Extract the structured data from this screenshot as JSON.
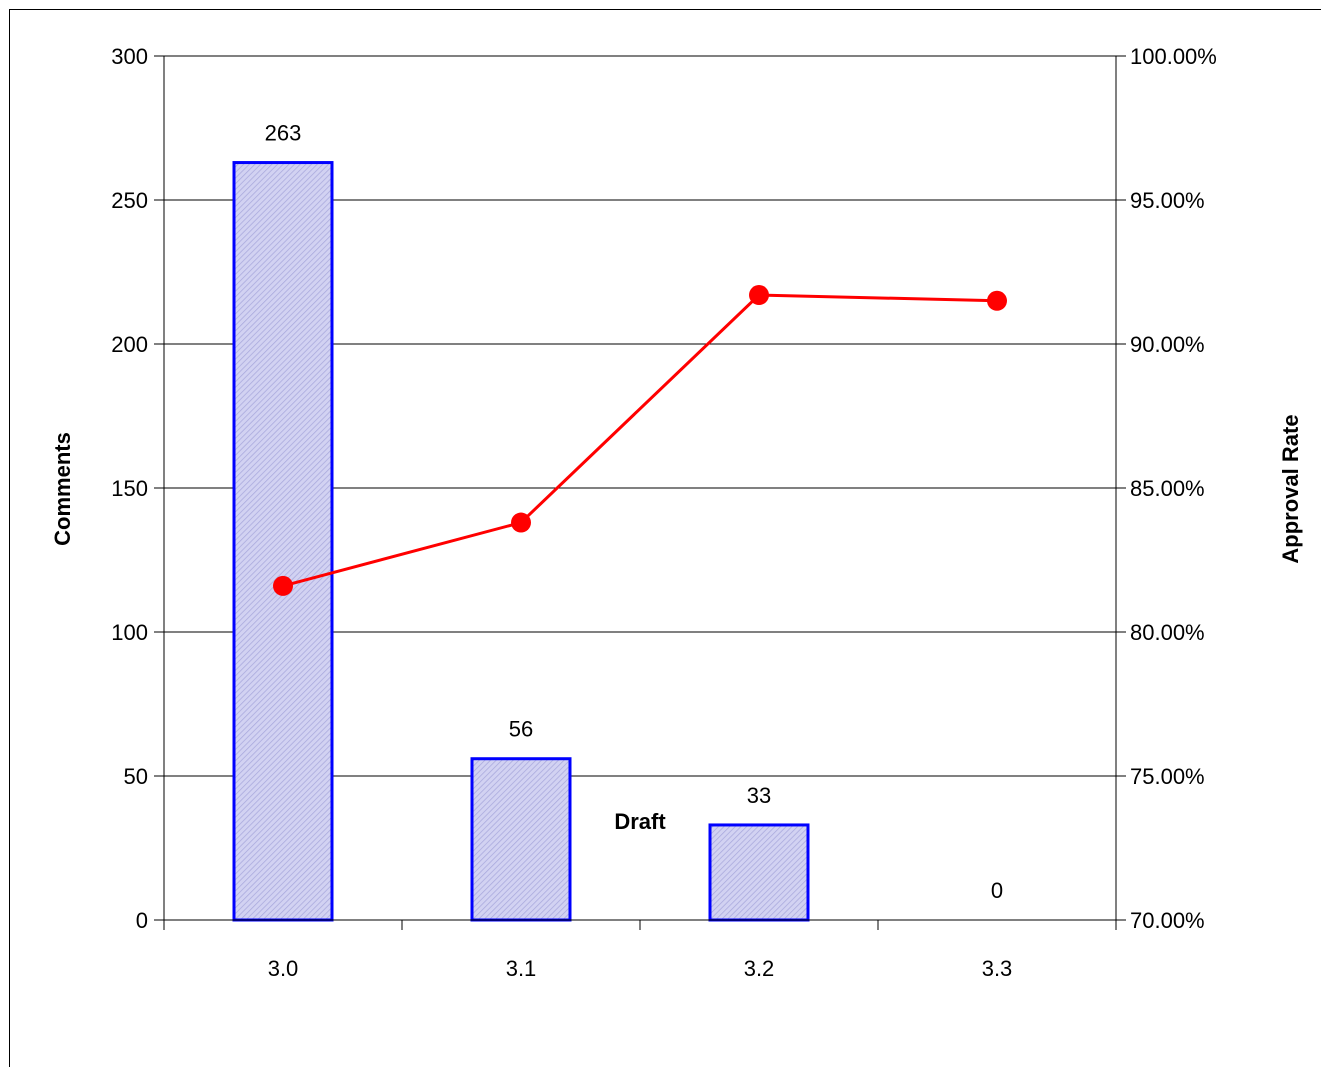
{
  "chart_data": {
    "type": "bar",
    "categories": [
      "3.0",
      "3.1",
      "3.2",
      "3.3"
    ],
    "xlabel": "Draft",
    "ylabel": "Comments",
    "y2label": "Approval Rate",
    "ylim": [
      0,
      300
    ],
    "y2lim": [
      0.7,
      1.0
    ],
    "yticks": [
      0,
      50,
      100,
      150,
      200,
      250,
      300
    ],
    "y2ticks": [
      "70.00%",
      "75.00%",
      "80.00%",
      "85.00%",
      "90.00%",
      "95.00%",
      "100.00%"
    ],
    "y2tick_values": [
      0.7,
      0.75,
      0.8,
      0.85,
      0.9,
      0.95,
      1.0
    ],
    "grid": true,
    "legend": "none",
    "series": [
      {
        "type": "bar",
        "axis": "left",
        "values": [
          263,
          56,
          33,
          0
        ],
        "labels": [
          "263",
          "56",
          "33",
          "0"
        ],
        "color": "#0000ff",
        "fill": "#c8c8f0"
      },
      {
        "type": "line",
        "axis": "right",
        "values": [
          0.816,
          0.838,
          0.917,
          0.915
        ],
        "color": "#ff0000"
      }
    ]
  }
}
